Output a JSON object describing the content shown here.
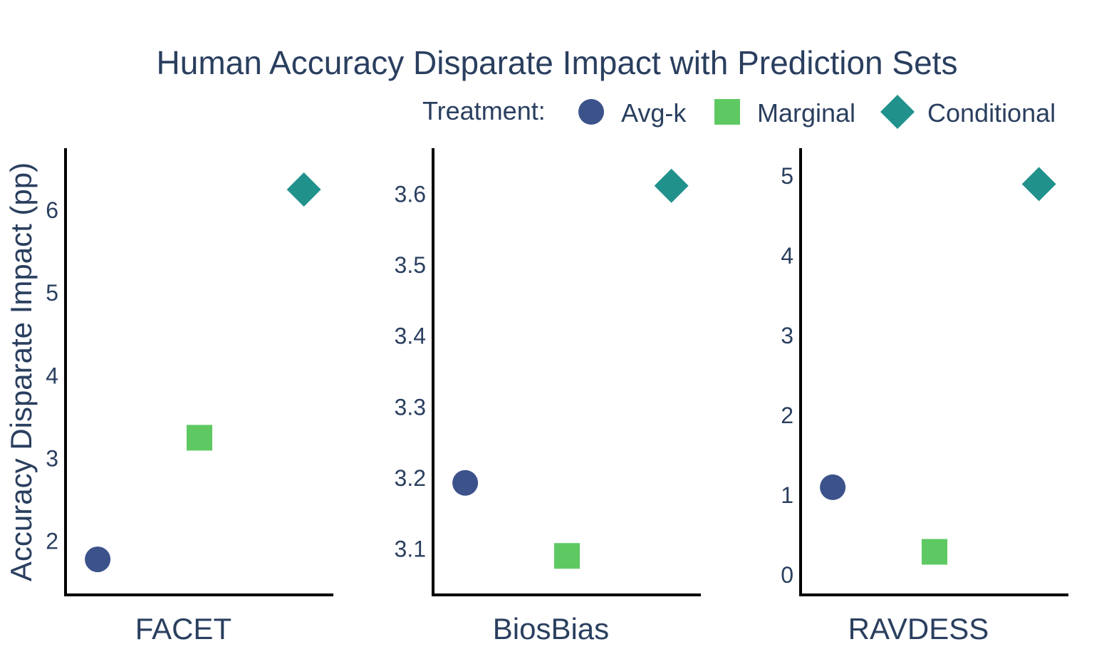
{
  "chart_data": {
    "type": "scatter",
    "title": "Human Accuracy Disparate Impact with Prediction Sets",
    "ylabel": "Accuracy Disparate Impact (pp)",
    "legend": {
      "title": "Treatment:",
      "position": "top-right",
      "items": [
        {
          "name": "Avg-k",
          "symbol": "circle",
          "color": "#3b528b"
        },
        {
          "name": "Marginal",
          "symbol": "square",
          "color": "#5ec962"
        },
        {
          "name": "Conditional",
          "symbol": "diamond",
          "color": "#21918c"
        }
      ]
    },
    "panels": [
      {
        "xlabel": "FACET",
        "ylim": [
          1.35,
          6.75
        ],
        "yticks": [
          2,
          3,
          4,
          5,
          6
        ],
        "ytick_labels": [
          "2",
          "3",
          "4",
          "5",
          "6"
        ],
        "points": [
          {
            "treatment": "Avg-k",
            "value": 1.78
          },
          {
            "treatment": "Marginal",
            "value": 3.25
          },
          {
            "treatment": "Conditional",
            "value": 6.25
          }
        ]
      },
      {
        "xlabel": "BiosBias",
        "ylim": [
          3.035,
          3.665
        ],
        "yticks": [
          3.1,
          3.2,
          3.3,
          3.4,
          3.5,
          3.6
        ],
        "ytick_labels": [
          "3.1",
          "3.2",
          "3.3",
          "3.4",
          "3.5",
          "3.6"
        ],
        "points": [
          {
            "treatment": "Avg-k",
            "value": 3.193
          },
          {
            "treatment": "Marginal",
            "value": 3.09
          },
          {
            "treatment": "Conditional",
            "value": 3.612
          }
        ]
      },
      {
        "xlabel": "RAVDESS",
        "ylim": [
          -0.25,
          5.35
        ],
        "yticks": [
          0,
          1,
          2,
          3,
          4,
          5
        ],
        "ytick_labels": [
          "0",
          "1",
          "2",
          "3",
          "4",
          "5"
        ],
        "points": [
          {
            "treatment": "Avg-k",
            "value": 1.1
          },
          {
            "treatment": "Marginal",
            "value": 0.29
          },
          {
            "treatment": "Conditional",
            "value": 4.9
          }
        ]
      }
    ]
  }
}
